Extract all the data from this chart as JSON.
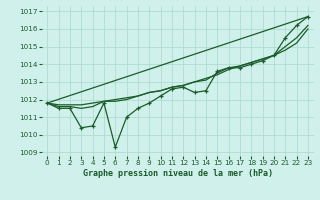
{
  "xlabel": "Graphe pression niveau de la mer (hPa)",
  "xlim": [
    -0.5,
    23.5
  ],
  "ylim": [
    1008.8,
    1017.3
  ],
  "yticks": [
    1009,
    1010,
    1011,
    1012,
    1013,
    1014,
    1015,
    1016,
    1017
  ],
  "xticks": [
    0,
    1,
    2,
    3,
    4,
    5,
    6,
    7,
    8,
    9,
    10,
    11,
    12,
    13,
    14,
    15,
    16,
    17,
    18,
    19,
    20,
    21,
    22,
    23
  ],
  "bg_color": "#d0f0ec",
  "grid_color": "#a8d8cc",
  "line_color": "#1a5c2a",
  "series": [
    {
      "x": [
        0,
        1,
        2,
        3,
        4,
        5,
        6,
        7,
        8,
        9,
        10,
        11,
        12,
        13,
        14,
        15,
        16,
        17,
        18,
        19,
        20,
        21,
        22,
        23
      ],
      "y": [
        1011.8,
        1011.5,
        1011.5,
        1010.4,
        1010.5,
        1011.8,
        1009.3,
        1011.0,
        1011.5,
        1011.8,
        1012.2,
        1012.6,
        1012.7,
        1012.4,
        1012.5,
        1013.6,
        1013.8,
        1013.8,
        1014.0,
        1014.2,
        1014.5,
        1015.5,
        1016.2,
        1016.7
      ],
      "has_marker": true
    },
    {
      "x": [
        0,
        1,
        2,
        3,
        4,
        5,
        6,
        7,
        8,
        9,
        10,
        11,
        12,
        13,
        14,
        15,
        16,
        17,
        18,
        19,
        20,
        21,
        22,
        23
      ],
      "y": [
        1011.8,
        1011.6,
        1011.6,
        1011.5,
        1011.6,
        1011.9,
        1011.9,
        1012.0,
        1012.2,
        1012.4,
        1012.5,
        1012.7,
        1012.8,
        1013.0,
        1013.1,
        1013.5,
        1013.8,
        1013.9,
        1014.1,
        1014.3,
        1014.5,
        1015.0,
        1015.5,
        1016.2
      ],
      "has_marker": false
    },
    {
      "x": [
        0,
        1,
        2,
        3,
        4,
        5,
        6,
        7,
        8,
        9,
        10,
        11,
        12,
        13,
        14,
        15,
        16,
        17,
        18,
        19,
        20,
        21,
        22,
        23
      ],
      "y": [
        1011.8,
        1011.7,
        1011.7,
        1011.7,
        1011.8,
        1011.9,
        1012.0,
        1012.1,
        1012.2,
        1012.4,
        1012.5,
        1012.7,
        1012.8,
        1013.0,
        1013.2,
        1013.4,
        1013.7,
        1013.9,
        1014.1,
        1014.3,
        1014.5,
        1014.8,
        1015.2,
        1016.0
      ],
      "has_marker": false
    },
    {
      "x": [
        0,
        23
      ],
      "y": [
        1011.8,
        1016.7
      ],
      "has_marker": false
    }
  ],
  "figsize": [
    3.2,
    2.0
  ],
  "dpi": 100
}
